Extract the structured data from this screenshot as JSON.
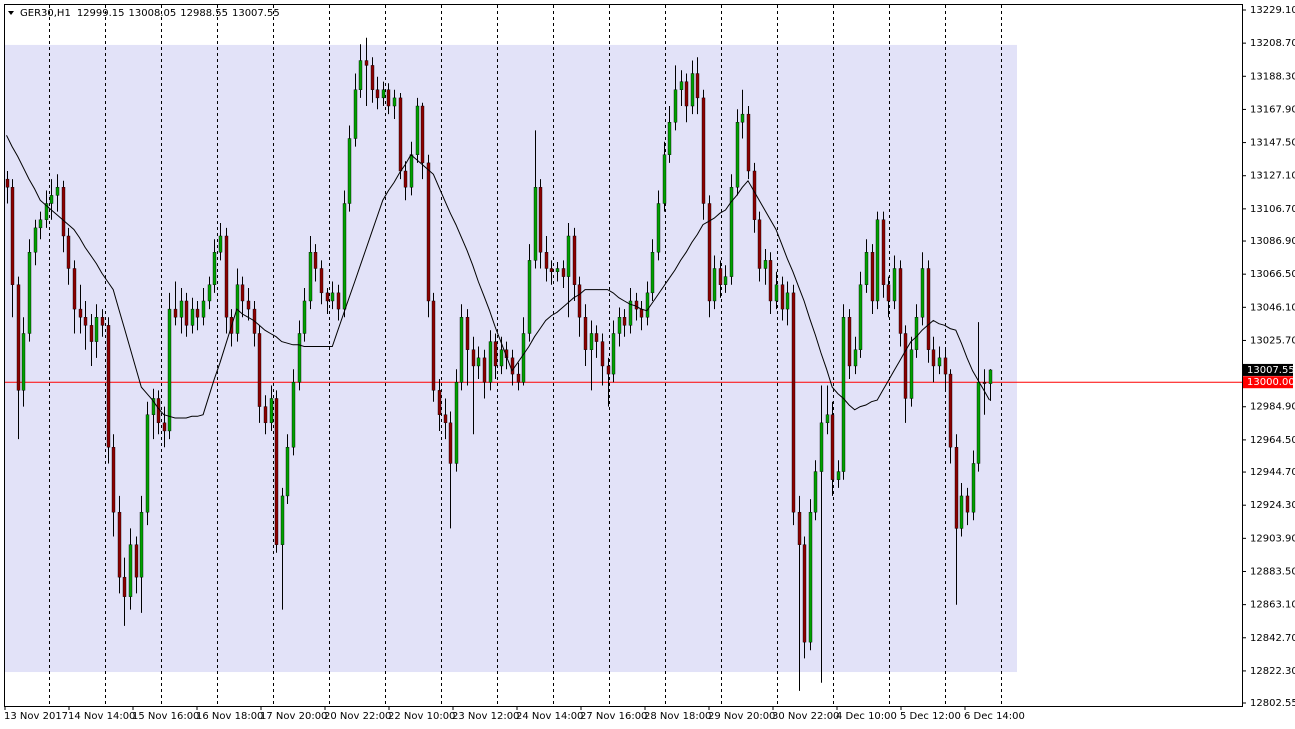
{
  "chart_data": {
    "type": "candlestick",
    "title": "GER30,H1",
    "ylim": [
      12802.55,
      13229.1
    ],
    "yticks": [
      {
        "value": 13229.1,
        "label": "13229.10"
      },
      {
        "value": 13208.7,
        "label": "13208.70"
      },
      {
        "value": 13188.3,
        "label": "13188.30"
      },
      {
        "value": 13167.9,
        "label": "13167.90"
      },
      {
        "value": 13147.5,
        "label": "13147.50"
      },
      {
        "value": 13127.1,
        "label": "13127.10"
      },
      {
        "value": 13106.7,
        "label": "13106.70"
      },
      {
        "value": 13086.9,
        "label": "13086.90"
      },
      {
        "value": 13066.5,
        "label": "13066.50"
      },
      {
        "value": 13046.1,
        "label": "13046.10"
      },
      {
        "value": 13025.7,
        "label": "13025.70"
      },
      {
        "value": 12984.9,
        "label": "12984.90"
      },
      {
        "value": 12964.5,
        "label": "12964.50"
      },
      {
        "value": 12944.7,
        "label": "12944.70"
      },
      {
        "value": 12924.3,
        "label": "12924.30"
      },
      {
        "value": 12903.9,
        "label": "12903.90"
      },
      {
        "value": 12883.5,
        "label": "12883.50"
      },
      {
        "value": 12863.1,
        "label": "12863.10"
      },
      {
        "value": 12842.7,
        "label": "12842.70"
      },
      {
        "value": 12822.3,
        "label": "12822.30"
      },
      12802.55
    ],
    "x_labels": [
      "13 Nov 2017",
      "14 Nov 14:00",
      "15 Nov 16:00",
      "16 Nov 18:00",
      "17 Nov 20:00",
      "20 Nov 22:00",
      "22 Nov 10:00",
      "23 Nov 12:00",
      "24 Nov 14:00",
      "27 Nov 16:00",
      "28 Nov 18:00",
      "29 Nov 20:00",
      "30 Nov 22:00",
      "4 Dec 10:00",
      "5 Dec 12:00",
      "6 Dec 14:00"
    ],
    "up_color": "#00a000",
    "down_color": "#8b0000",
    "shaded_range": {
      "top": 13207.6,
      "bottom": 12821.6,
      "color": "#e2e2f8"
    },
    "hline": {
      "value": 13000,
      "label": "13000.00",
      "color": "#ff0000"
    },
    "candles": [
      [
        13125,
        13130,
        13110,
        13120
      ],
      [
        13120,
        13125,
        13040,
        13060
      ],
      [
        13060,
        13065,
        12965,
        12995
      ],
      [
        12995,
        13040,
        12985,
        13030
      ],
      [
        13030,
        13088,
        13025,
        13080
      ],
      [
        13080,
        13100,
        13072,
        13095
      ],
      [
        13095,
        13105,
        13088,
        13100
      ],
      [
        13100,
        13118,
        13095,
        13110
      ],
      [
        13110,
        13125,
        13100,
        13115
      ],
      [
        13115,
        13128,
        13105,
        13120
      ],
      [
        13120,
        13124,
        13080,
        13090
      ],
      [
        13090,
        13095,
        13060,
        13070
      ],
      [
        13070,
        13075,
        13030,
        13045
      ],
      [
        13045,
        13060,
        13030,
        13040
      ],
      [
        13040,
        13050,
        13020,
        13035
      ],
      [
        13035,
        13042,
        13010,
        13025
      ],
      [
        13025,
        13048,
        13015,
        13040
      ],
      [
        13040,
        13045,
        13028,
        13035
      ],
      [
        13035,
        13040,
        12950,
        12960
      ],
      [
        12960,
        12968,
        12905,
        12920
      ],
      [
        12920,
        12930,
        12870,
        12880
      ],
      [
        12880,
        12892,
        12850,
        12868
      ],
      [
        12868,
        12910,
        12860,
        12900
      ],
      [
        12900,
        12905,
        12870,
        12880
      ],
      [
        12880,
        12930,
        12858,
        12920
      ],
      [
        12920,
        12988,
        12912,
        12980
      ],
      [
        12980,
        12996,
        12965,
        12990
      ],
      [
        12990,
        12995,
        12968,
        12975
      ],
      [
        12975,
        12985,
        12960,
        12970
      ],
      [
        12970,
        13055,
        12965,
        13045
      ],
      [
        13045,
        13062,
        13035,
        13040
      ],
      [
        13040,
        13058,
        13030,
        13050
      ],
      [
        13050,
        13055,
        13028,
        13035
      ],
      [
        13035,
        13052,
        13030,
        13045
      ],
      [
        13045,
        13050,
        13032,
        13040
      ],
      [
        13040,
        13058,
        13035,
        13050
      ],
      [
        13050,
        13065,
        13045,
        13060
      ],
      [
        13060,
        13088,
        13055,
        13080
      ],
      [
        13080,
        13098,
        13075,
        13090
      ],
      [
        13090,
        13095,
        13030,
        13040
      ],
      [
        13040,
        13045,
        13022,
        13030
      ],
      [
        13030,
        13070,
        13025,
        13060
      ],
      [
        13060,
        13065,
        13040,
        13050
      ],
      [
        13050,
        13058,
        13038,
        13045
      ],
      [
        13045,
        13050,
        13022,
        13030
      ],
      [
        13030,
        13035,
        12975,
        12985
      ],
      [
        12985,
        12992,
        12968,
        12975
      ],
      [
        12975,
        12998,
        12970,
        12990
      ],
      [
        12990,
        12995,
        12895,
        12900
      ],
      [
        12900,
        12935,
        12860,
        12930
      ],
      [
        12930,
        12968,
        12925,
        12960
      ],
      [
        12960,
        13008,
        12955,
        13000
      ],
      [
        13000,
        13038,
        12995,
        13030
      ],
      [
        13030,
        13058,
        13025,
        13050
      ],
      [
        13050,
        13090,
        13045,
        13080
      ],
      [
        13080,
        13085,
        13062,
        13070
      ],
      [
        13070,
        13075,
        13048,
        13055
      ],
      [
        13055,
        13058,
        13042,
        13050
      ],
      [
        13050,
        13062,
        13045,
        13055
      ],
      [
        13055,
        13060,
        13038,
        13045
      ],
      [
        13045,
        13118,
        13040,
        13110
      ],
      [
        13110,
        13158,
        13105,
        13150
      ],
      [
        13150,
        13190,
        13145,
        13180
      ],
      [
        13180,
        13208,
        13175,
        13198
      ],
      [
        13198,
        13212,
        13170,
        13195
      ],
      [
        13195,
        13200,
        13172,
        13180
      ],
      [
        13180,
        13188,
        13168,
        13175
      ],
      [
        13175,
        13185,
        13170,
        13180
      ],
      [
        13180,
        13184,
        13165,
        13170
      ],
      [
        13170,
        13180,
        13162,
        13175
      ],
      [
        13175,
        13178,
        13125,
        13130
      ],
      [
        13130,
        13136,
        13112,
        13120
      ],
      [
        13120,
        13148,
        13115,
        13140
      ],
      [
        13140,
        13175,
        13135,
        13170
      ],
      [
        13170,
        13172,
        13125,
        13135
      ],
      [
        13135,
        13140,
        13040,
        13050
      ],
      [
        13050,
        13055,
        12988,
        12995
      ],
      [
        12995,
        13002,
        12970,
        12980
      ],
      [
        12980,
        12990,
        12965,
        12975
      ],
      [
        12975,
        12982,
        12910,
        12950
      ],
      [
        12950,
        13008,
        12945,
        13000
      ],
      [
        13000,
        13048,
        12995,
        13040
      ],
      [
        13040,
        13045,
        12998,
        13020
      ],
      [
        13020,
        13028,
        12968,
        13010
      ],
      [
        13010,
        13022,
        13002,
        13015
      ],
      [
        13015,
        13020,
        12990,
        13000
      ],
      [
        13000,
        13032,
        12995,
        13025
      ],
      [
        13025,
        13030,
        13002,
        13010
      ],
      [
        13010,
        13028,
        13005,
        13020
      ],
      [
        13020,
        13025,
        13008,
        13015
      ],
      [
        13015,
        13020,
        12998,
        13005
      ],
      [
        13005,
        13012,
        12995,
        13000
      ],
      [
        13000,
        13040,
        12998,
        13030
      ],
      [
        13030,
        13085,
        13025,
        13075
      ],
      [
        13075,
        13155,
        13070,
        13120
      ],
      [
        13120,
        13125,
        13070,
        13080
      ],
      [
        13080,
        13090,
        13062,
        13070
      ],
      [
        13070,
        13075,
        13060,
        13068
      ],
      [
        13068,
        13074,
        13062,
        13070
      ],
      [
        13070,
        13075,
        13058,
        13065
      ],
      [
        13065,
        13098,
        13040,
        13090
      ],
      [
        13090,
        13095,
        13050,
        13060
      ],
      [
        13060,
        13065,
        13028,
        13040
      ],
      [
        13040,
        13048,
        13010,
        13020
      ],
      [
        13020,
        13038,
        12995,
        13030
      ],
      [
        13030,
        13035,
        13015,
        13025
      ],
      [
        13025,
        13030,
        12998,
        13010
      ],
      [
        13010,
        13015,
        12985,
        13005
      ],
      [
        13005,
        13038,
        13000,
        13030
      ],
      [
        13030,
        13046,
        13022,
        13040
      ],
      [
        13040,
        13045,
        13028,
        13035
      ],
      [
        13035,
        13058,
        13030,
        13050
      ],
      [
        13050,
        13055,
        13038,
        13045
      ],
      [
        13045,
        13050,
        13032,
        13040
      ],
      [
        13040,
        13062,
        13035,
        13055
      ],
      [
        13055,
        13088,
        13050,
        13080
      ],
      [
        13080,
        13118,
        13075,
        13110
      ],
      [
        13110,
        13148,
        13105,
        13140
      ],
      [
        13140,
        13170,
        13135,
        13160
      ],
      [
        13160,
        13195,
        13155,
        13180
      ],
      [
        13180,
        13192,
        13170,
        13185
      ],
      [
        13185,
        13190,
        13160,
        13170
      ],
      [
        13170,
        13198,
        13165,
        13190
      ],
      [
        13190,
        13200,
        13165,
        13175
      ],
      [
        13175,
        13180,
        13100,
        13110
      ],
      [
        13110,
        13115,
        13040,
        13050
      ],
      [
        13050,
        13078,
        13045,
        13070
      ],
      [
        13070,
        13075,
        13052,
        13060
      ],
      [
        13060,
        13072,
        13055,
        13065
      ],
      [
        13065,
        13128,
        13060,
        13120
      ],
      [
        13120,
        13168,
        13115,
        13160
      ],
      [
        13160,
        13180,
        13150,
        13165
      ],
      [
        13165,
        13170,
        13125,
        13130
      ],
      [
        13130,
        13135,
        13092,
        13100
      ],
      [
        13100,
        13105,
        13062,
        13070
      ],
      [
        13070,
        13082,
        13060,
        13075
      ],
      [
        13075,
        13080,
        13042,
        13050
      ],
      [
        13050,
        13068,
        13045,
        13060
      ],
      [
        13060,
        13065,
        13038,
        13045
      ],
      [
        13045,
        13062,
        13035,
        13055
      ],
      [
        13055,
        13060,
        12912,
        12920
      ],
      [
        12920,
        12930,
        12810,
        12900
      ],
      [
        12900,
        12905,
        12830,
        12840
      ],
      [
        12840,
        12928,
        12835,
        12920
      ],
      [
        12920,
        12952,
        12915,
        12945
      ],
      [
        12945,
        12998,
        12815,
        12975
      ],
      [
        12975,
        12998,
        12968,
        12980
      ],
      [
        12980,
        12988,
        12930,
        12940
      ],
      [
        12940,
        12952,
        12935,
        12945
      ],
      [
        12945,
        13048,
        12940,
        13040
      ],
      [
        13040,
        13045,
        13002,
        13010
      ],
      [
        13010,
        13028,
        13005,
        13020
      ],
      [
        13020,
        13068,
        13015,
        13060
      ],
      [
        13060,
        13088,
        13055,
        13080
      ],
      [
        13080,
        13085,
        13042,
        13050
      ],
      [
        13050,
        13105,
        13045,
        13100
      ],
      [
        13100,
        13105,
        13052,
        13060
      ],
      [
        13060,
        13065,
        13040,
        13050
      ],
      [
        13050,
        13078,
        13045,
        13070
      ],
      [
        13070,
        13075,
        13022,
        13030
      ],
      [
        13030,
        13035,
        12975,
        12990
      ],
      [
        12990,
        13028,
        12985,
        13020
      ],
      [
        13020,
        13048,
        13015,
        13040
      ],
      [
        13040,
        13080,
        13035,
        13070
      ],
      [
        13070,
        13075,
        13012,
        13020
      ],
      [
        13020,
        13028,
        13000,
        13010
      ],
      [
        13010,
        13022,
        13005,
        13015
      ],
      [
        13015,
        13020,
        12995,
        13005
      ],
      [
        13005,
        13008,
        12950,
        12960
      ],
      [
        12960,
        12968,
        12863,
        12910
      ],
      [
        12910,
        12938,
        12905,
        12930
      ],
      [
        12930,
        12935,
        12912,
        12920
      ],
      [
        12920,
        12958,
        12915,
        12950
      ],
      [
        12950,
        13037,
        12945,
        13000
      ],
      [
        13000,
        13008,
        12980,
        12999.15
      ],
      [
        12999.15,
        13008.05,
        12988.55,
        13007.55
      ]
    ],
    "ma": {
      "color": "#000000",
      "values": [
        13152,
        13145,
        13139,
        13132,
        13125,
        13119,
        13112,
        13109,
        13106,
        13103,
        13100,
        13097,
        13094,
        13089,
        13083,
        13078,
        13073,
        13067,
        13062,
        13057,
        13045,
        13033,
        13021,
        13009,
        12997,
        12993,
        12989,
        12984,
        12980,
        12979,
        12978,
        12978,
        12978,
        12979,
        12979,
        12980,
        12991,
        13002,
        13012,
        13023,
        13034,
        13045,
        13042,
        13040,
        13038,
        13035,
        13032,
        13030,
        13028,
        13025,
        13024,
        13023,
        13023,
        13022,
        13022,
        13022,
        13022,
        13022,
        13022,
        13032,
        13042,
        13052,
        13062,
        13072,
        13082,
        13092,
        13102,
        13112,
        13118,
        13123,
        13129,
        13134,
        13140,
        13137,
        13134,
        13131,
        13128,
        13120,
        13112,
        13104,
        13097,
        13089,
        13081,
        13072,
        13062,
        13053,
        13044,
        13034,
        13025,
        13016,
        13007,
        13012,
        13017,
        13022,
        13028,
        13033,
        13038,
        13041,
        13043,
        13046,
        13049,
        13052,
        13054,
        13057,
        13057,
        13057,
        13057,
        13057,
        13055,
        13052,
        13050,
        13048,
        13047,
        13045,
        13044,
        13049,
        13054,
        13059,
        13064,
        13069,
        13075,
        13080,
        13086,
        13091,
        13097,
        13099,
        13101,
        13104,
        13106,
        13111,
        13115,
        13120,
        13124,
        13118,
        13112,
        13106,
        13100,
        13094,
        13085,
        13076,
        13068,
        13059,
        13050,
        13039,
        13029,
        13018,
        13008,
        12997,
        12993,
        12990,
        12986,
        12983,
        12985,
        12986,
        12988,
        12989,
        12995,
        13001,
        13007,
        13013,
        13019,
        13025,
        13028,
        13032,
        13035,
        13038,
        13036,
        13035,
        13033,
        13032,
        13024,
        13015,
        13007,
        13001,
        12995,
        12989
      ]
    }
  }
}
